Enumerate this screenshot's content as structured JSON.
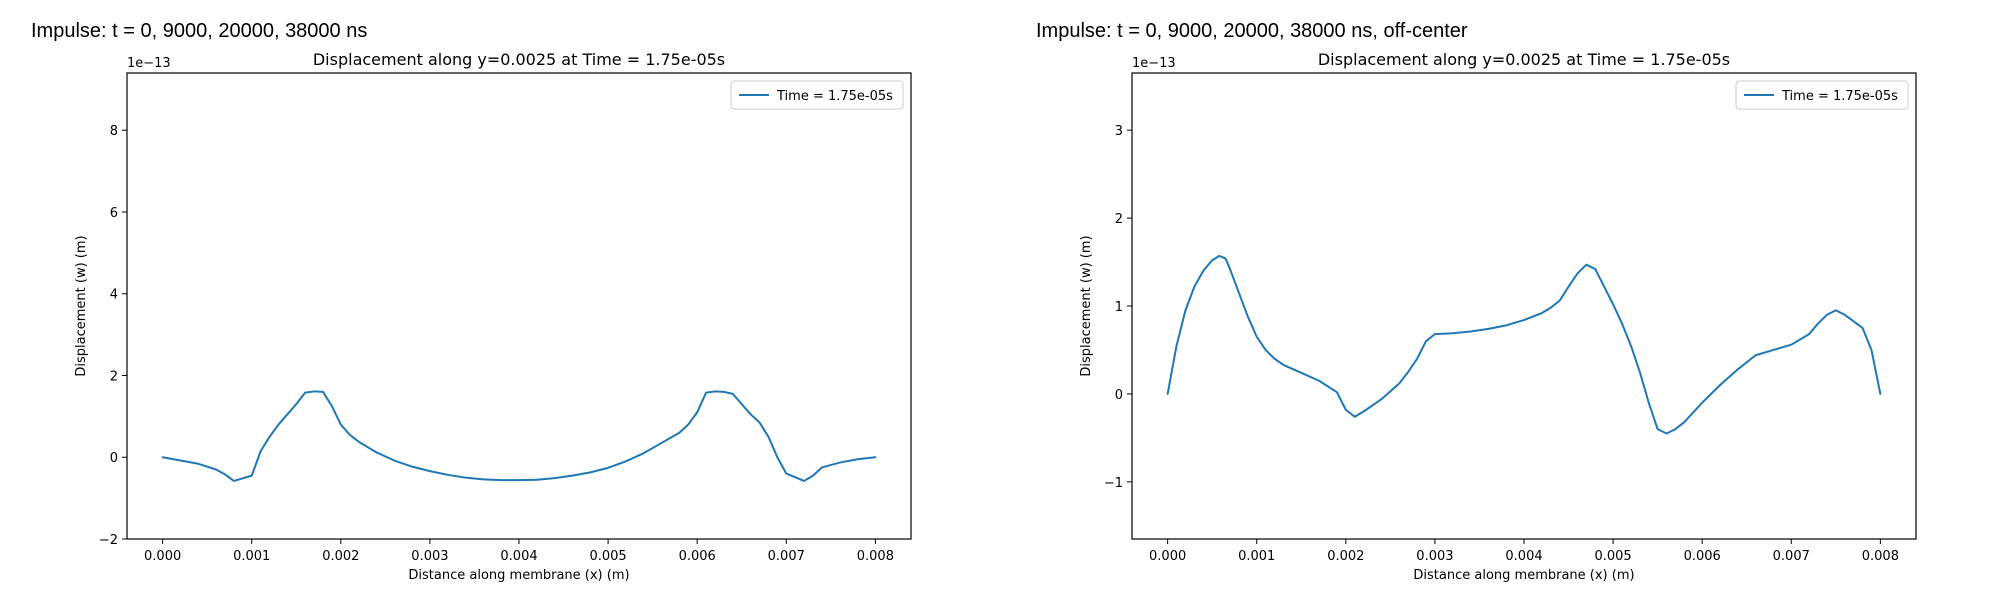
{
  "panels": [
    {
      "suptitle": "Impulse: t = 0, 9000, 20000, 38000 ns",
      "chart_data": {
        "type": "line",
        "title": "Displacement along y=0.0025 at Time = 1.75e-05s",
        "xlabel": "Distance along membrane (x) (m)",
        "ylabel": "Displacement (w) (m)",
        "offset_label": "1e−13",
        "xlim": [
          -0.0004,
          0.0084
        ],
        "ylim": [
          -2.0,
          9.4
        ],
        "xticks": [
          0.0,
          0.001,
          0.002,
          0.003,
          0.004,
          0.005,
          0.006,
          0.007,
          0.008
        ],
        "xtick_labels": [
          "0.000",
          "0.001",
          "0.002",
          "0.003",
          "0.004",
          "0.005",
          "0.006",
          "0.007",
          "0.008"
        ],
        "yticks": [
          -2,
          0,
          2,
          4,
          6,
          8
        ],
        "ytick_labels": [
          "−2",
          "0",
          "2",
          "4",
          "6",
          "8"
        ],
        "legend_position": "upper right",
        "color": "#1f77b4",
        "series": [
          {
            "name": "Time = 1.75e-05s",
            "x": [
              0.0,
              0.0002,
              0.0004,
              0.0006,
              0.0007,
              0.0008,
              0.001,
              0.0011,
              0.0012,
              0.0013,
              0.0014,
              0.0015,
              0.0016,
              0.0017,
              0.0018,
              0.0019,
              0.002,
              0.0021,
              0.0022,
              0.0024,
              0.0026,
              0.0028,
              0.003,
              0.0032,
              0.0034,
              0.0036,
              0.0038,
              0.004,
              0.0042,
              0.0044,
              0.0046,
              0.0048,
              0.005,
              0.0052,
              0.0054,
              0.0056,
              0.0058,
              0.0059,
              0.006,
              0.0061,
              0.0062,
              0.0063,
              0.0064,
              0.0065,
              0.0066,
              0.0067,
              0.0068,
              0.0069,
              0.007,
              0.0072,
              0.0073,
              0.0074,
              0.0076,
              0.0078,
              0.008
            ],
            "y": [
              0.0,
              -0.08,
              -0.16,
              -0.3,
              -0.42,
              -0.58,
              -0.45,
              0.15,
              0.5,
              0.8,
              1.05,
              1.3,
              1.58,
              1.61,
              1.6,
              1.25,
              0.8,
              0.55,
              0.38,
              0.12,
              -0.08,
              -0.23,
              -0.34,
              -0.43,
              -0.5,
              -0.54,
              -0.56,
              -0.56,
              -0.55,
              -0.51,
              -0.45,
              -0.37,
              -0.26,
              -0.1,
              0.1,
              0.35,
              0.6,
              0.8,
              1.1,
              1.58,
              1.61,
              1.6,
              1.55,
              1.3,
              1.05,
              0.85,
              0.5,
              0.0,
              -0.4,
              -0.58,
              -0.45,
              -0.25,
              -0.13,
              -0.05,
              0.0
            ]
          }
        ]
      }
    },
    {
      "suptitle": "Impulse: t = 0, 9000, 20000, 38000 ns, off-center",
      "chart_data": {
        "type": "line",
        "title": "Displacement along y=0.0025 at Time = 1.75e-05s",
        "xlabel": "Distance along membrane (x) (m)",
        "ylabel": "Displacement (w) (m)",
        "offset_label": "1e−13",
        "xlim": [
          -0.0004,
          0.0084
        ],
        "ylim": [
          -1.65,
          3.65
        ],
        "xticks": [
          0.0,
          0.001,
          0.002,
          0.003,
          0.004,
          0.005,
          0.006,
          0.007,
          0.008
        ],
        "xtick_labels": [
          "0.000",
          "0.001",
          "0.002",
          "0.003",
          "0.004",
          "0.005",
          "0.006",
          "0.007",
          "0.008"
        ],
        "yticks": [
          -1,
          0,
          1,
          2,
          3
        ],
        "ytick_labels": [
          "−1",
          "0",
          "1",
          "2",
          "3"
        ],
        "legend_position": "upper right",
        "color": "#1f77b4",
        "series": [
          {
            "name": "Time = 1.75e-05s",
            "x": [
              0.0,
              0.0001,
              0.0002,
              0.0003,
              0.0004,
              0.0005,
              0.00058,
              0.00065,
              0.0007,
              0.0008,
              0.0009,
              0.001,
              0.0011,
              0.0012,
              0.0013,
              0.0015,
              0.0017,
              0.0019,
              0.002,
              0.0021,
              0.0022,
              0.0024,
              0.0026,
              0.0027,
              0.0028,
              0.0029,
              0.003,
              0.0032,
              0.0034,
              0.0036,
              0.0038,
              0.004,
              0.0042,
              0.0043,
              0.0044,
              0.0045,
              0.0046,
              0.0047,
              0.0048,
              0.0049,
              0.005,
              0.0051,
              0.0052,
              0.0053,
              0.0054,
              0.0055,
              0.0056,
              0.0057,
              0.0058,
              0.006,
              0.0062,
              0.0064,
              0.0066,
              0.0068,
              0.007,
              0.0072,
              0.0073,
              0.0074,
              0.0075,
              0.0076,
              0.0078,
              0.0079,
              0.008
            ],
            "y": [
              0.0,
              0.55,
              0.95,
              1.22,
              1.4,
              1.52,
              1.57,
              1.54,
              1.42,
              1.15,
              0.88,
              0.65,
              0.5,
              0.4,
              0.33,
              0.24,
              0.15,
              0.02,
              -0.18,
              -0.26,
              -0.2,
              -0.06,
              0.12,
              0.25,
              0.4,
              0.6,
              0.68,
              0.69,
              0.71,
              0.74,
              0.78,
              0.84,
              0.92,
              0.98,
              1.06,
              1.22,
              1.37,
              1.47,
              1.42,
              1.22,
              1.02,
              0.8,
              0.55,
              0.25,
              -0.1,
              -0.4,
              -0.45,
              -0.4,
              -0.32,
              -0.1,
              0.1,
              0.28,
              0.44,
              0.5,
              0.56,
              0.68,
              0.8,
              0.9,
              0.95,
              0.9,
              0.75,
              0.5,
              0.0
            ]
          }
        ]
      }
    }
  ]
}
